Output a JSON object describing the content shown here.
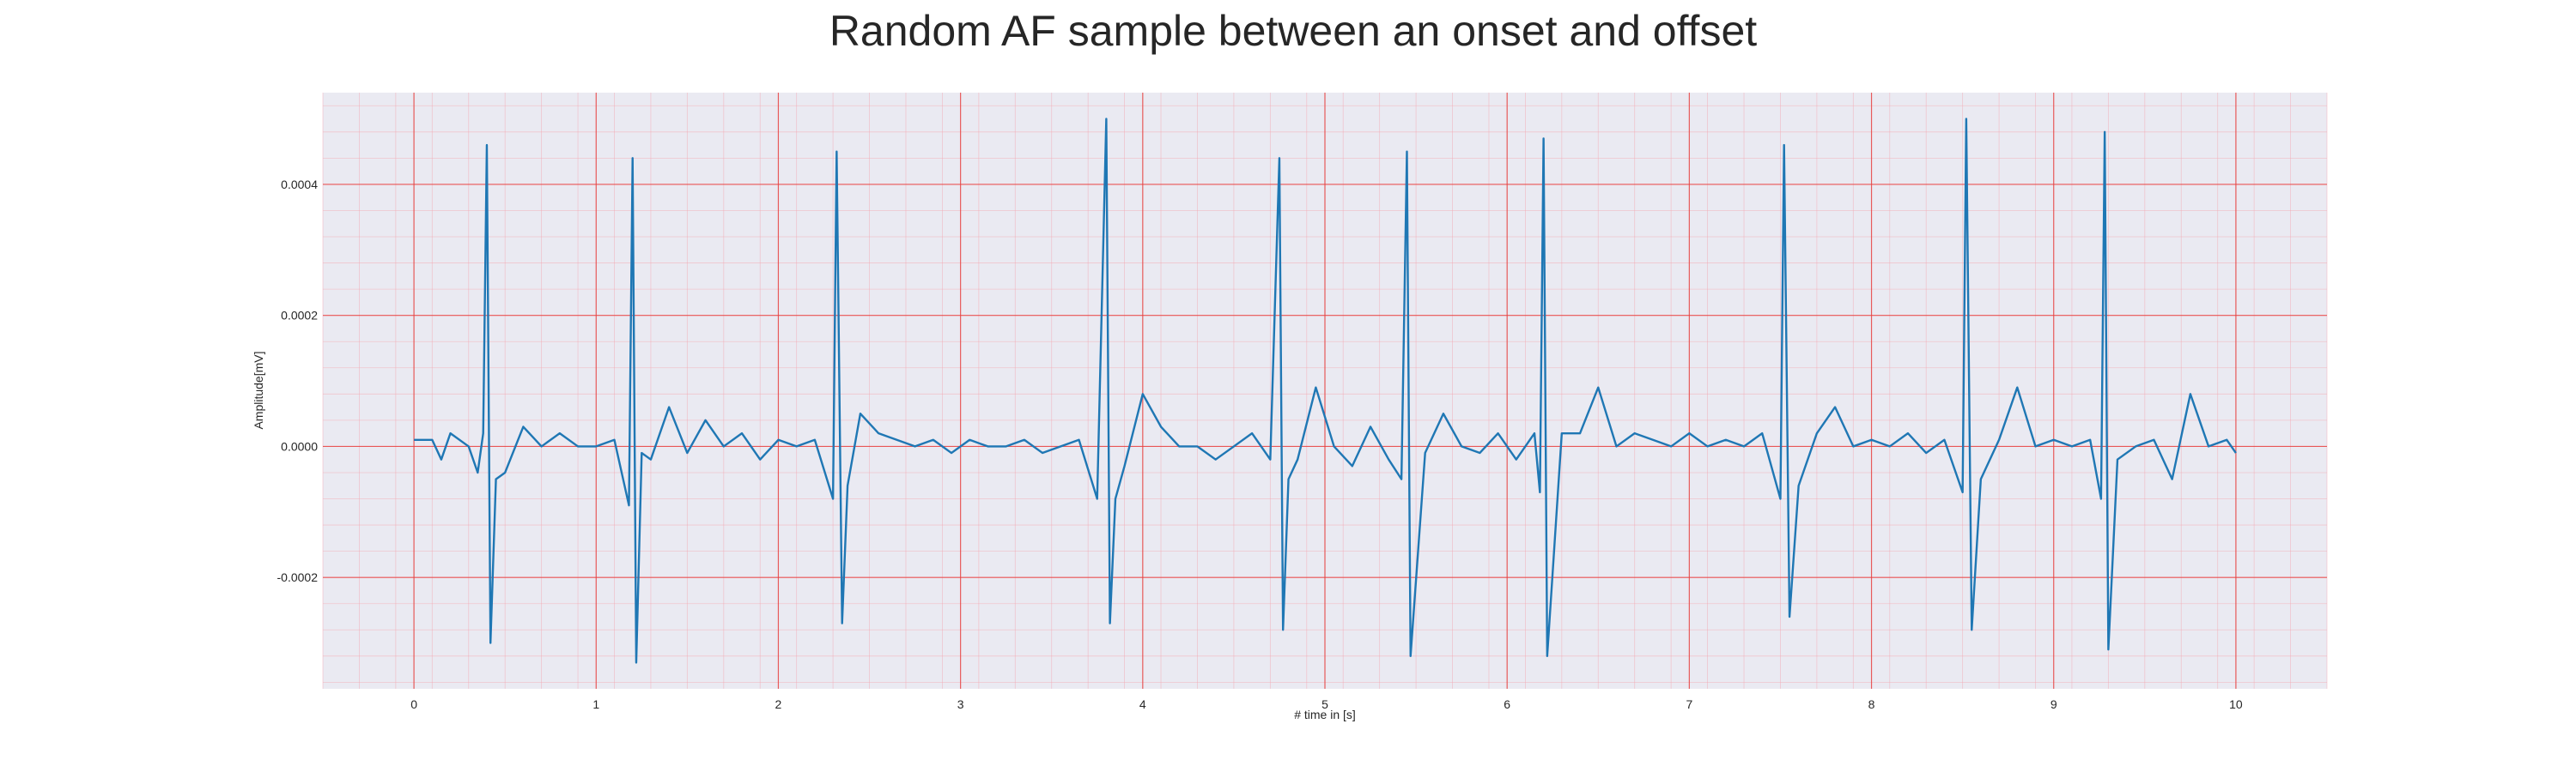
{
  "chart_data": {
    "type": "line",
    "title": "Random AF sample between an onset and offset",
    "xlabel": "# time in [s]",
    "ylabel": "Amplitude[mV]",
    "xlim": [
      -0.5,
      10.5
    ],
    "ylim": [
      -0.00037,
      0.00054
    ],
    "x_ticks": [
      0,
      1,
      2,
      3,
      4,
      5,
      6,
      7,
      8,
      9,
      10
    ],
    "x_tick_labels": [
      "0",
      "1",
      "2",
      "3",
      "4",
      "5",
      "6",
      "7",
      "8",
      "9",
      "10"
    ],
    "y_ticks": [
      -0.0002,
      0.0,
      0.0002,
      0.0004
    ],
    "y_tick_labels": [
      "-0.0002",
      "0.0000",
      "0.0002",
      "0.0004"
    ],
    "grid": true,
    "colors": {
      "line": "#1f77b4",
      "background": "#eaeaf2",
      "major_grid": "#e8413f",
      "minor_grid": "#f4a6b0"
    },
    "series": [
      {
        "x": [
          0.0,
          0.1,
          0.15,
          0.2,
          0.3,
          0.35,
          0.38,
          0.4,
          0.42,
          0.45,
          0.5,
          0.6,
          0.7,
          0.8,
          0.9,
          1.0,
          1.1,
          1.18,
          1.2,
          1.22,
          1.25,
          1.3,
          1.4,
          1.5,
          1.6,
          1.7,
          1.8,
          1.9,
          2.0,
          2.1,
          2.2,
          2.3,
          2.32,
          2.35,
          2.38,
          2.45,
          2.55,
          2.65,
          2.75,
          2.85,
          2.95,
          3.05,
          3.15,
          3.25,
          3.35,
          3.45,
          3.55,
          3.65,
          3.75,
          3.8,
          3.82,
          3.85,
          3.9,
          4.0,
          4.1,
          4.2,
          4.3,
          4.4,
          4.5,
          4.6,
          4.7,
          4.75,
          4.77,
          4.8,
          4.85,
          4.95,
          5.05,
          5.15,
          5.25,
          5.35,
          5.42,
          5.45,
          5.47,
          5.55,
          5.65,
          5.75,
          5.85,
          5.95,
          6.05,
          6.15,
          6.18,
          6.2,
          6.22,
          6.3,
          6.4,
          6.5,
          6.6,
          6.7,
          6.8,
          6.9,
          7.0,
          7.1,
          7.2,
          7.3,
          7.4,
          7.5,
          7.52,
          7.55,
          7.6,
          7.7,
          7.8,
          7.9,
          8.0,
          8.1,
          8.2,
          8.3,
          8.4,
          8.5,
          8.52,
          8.55,
          8.6,
          8.7,
          8.8,
          8.9,
          9.0,
          9.1,
          9.2,
          9.26,
          9.28,
          9.3,
          9.35,
          9.45,
          9.55,
          9.65,
          9.75,
          9.85,
          9.95,
          10.0
        ],
        "y": [
          1e-05,
          1e-05,
          -2e-05,
          2e-05,
          0.0,
          -4e-05,
          2e-05,
          0.00046,
          -0.0003,
          -5e-05,
          -4e-05,
          3e-05,
          0.0,
          2e-05,
          0.0,
          0.0,
          1e-05,
          -9e-05,
          0.00044,
          -0.00033,
          -1e-05,
          -2e-05,
          6e-05,
          -1e-05,
          4e-05,
          0.0,
          2e-05,
          -2e-05,
          1e-05,
          0.0,
          1e-05,
          -8e-05,
          0.00045,
          -0.00027,
          -6e-05,
          5e-05,
          2e-05,
          1e-05,
          0.0,
          1e-05,
          -1e-05,
          1e-05,
          0.0,
          0.0,
          1e-05,
          -1e-05,
          0.0,
          1e-05,
          -8e-05,
          0.0005,
          -0.00027,
          -8e-05,
          -3e-05,
          8e-05,
          3e-05,
          0.0,
          0.0,
          -2e-05,
          0.0,
          2e-05,
          -2e-05,
          0.00044,
          -0.00028,
          -5e-05,
          -2e-05,
          9e-05,
          0.0,
          -3e-05,
          3e-05,
          -2e-05,
          -5e-05,
          0.00045,
          -0.00032,
          -1e-05,
          5e-05,
          0.0,
          -1e-05,
          2e-05,
          -2e-05,
          2e-05,
          -7e-05,
          0.00047,
          -0.00032,
          2e-05,
          2e-05,
          9e-05,
          0.0,
          2e-05,
          1e-05,
          0.0,
          2e-05,
          0.0,
          1e-05,
          0.0,
          2e-05,
          -8e-05,
          0.00046,
          -0.00026,
          -6e-05,
          2e-05,
          6e-05,
          0.0,
          1e-05,
          0.0,
          2e-05,
          -1e-05,
          1e-05,
          -7e-05,
          0.0005,
          -0.00028,
          -5e-05,
          1e-05,
          9e-05,
          0.0,
          1e-05,
          0.0,
          1e-05,
          -8e-05,
          0.00048,
          -0.00031,
          -2e-05,
          0.0,
          1e-05,
          -5e-05,
          8e-05,
          0.0,
          1e-05,
          -1e-05
        ]
      }
    ]
  }
}
